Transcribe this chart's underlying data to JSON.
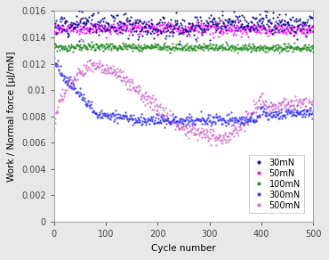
{
  "title": "",
  "xlabel": "Cycle number",
  "ylabel": "Work / Normal force [μJ/mN]",
  "xlim": [
    0,
    500
  ],
  "ylim": [
    0,
    0.016
  ],
  "ytick_labels": [
    "0",
    "0.002",
    "0.004",
    "0.006",
    "0.008",
    "0.01",
    "0.012",
    "0.014",
    "0.016"
  ],
  "ytick_vals": [
    0,
    0.002,
    0.004,
    0.006,
    0.008,
    0.01,
    0.012,
    0.014,
    0.016
  ],
  "xticks": [
    0,
    100,
    200,
    300,
    400,
    500
  ],
  "legend_fontsize": 7,
  "axis_fontsize": 7.5,
  "tick_fontsize": 7
}
